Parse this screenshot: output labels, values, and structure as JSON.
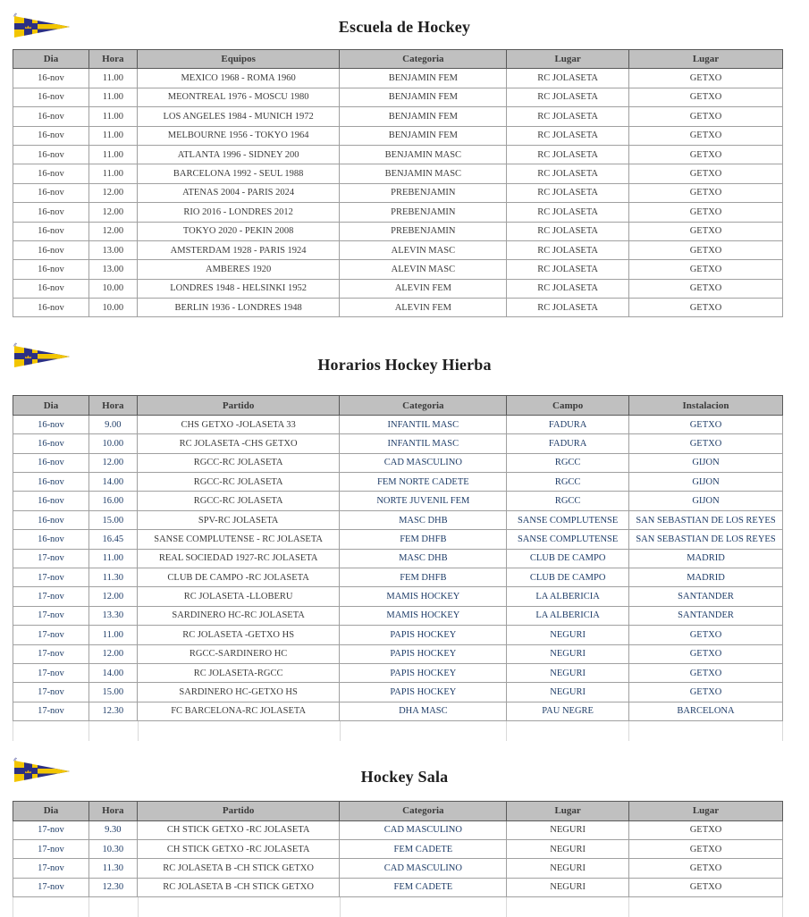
{
  "colors": {
    "accent_blue": "#1f3d68",
    "text_dark": "#3b3b3b",
    "header_bg": "#c0c0c0",
    "border_dark": "#595959",
    "border_light": "#a0a0a0",
    "flag_navy": "#2b2f84",
    "flag_yellow": "#f2c500",
    "crown_gold": "#d4a017"
  },
  "logo_icon": "club-burgee-pennant",
  "sections": [
    {
      "title": "Escuela de Hockey",
      "columns": [
        "Dia",
        "Hora",
        "Equipos",
        "Categoria",
        "Lugar",
        "Lugar"
      ],
      "blue_columns": [],
      "trailing_empty_row": false,
      "rows": [
        [
          "16-nov",
          "11.00",
          "MEXICO 1968 - ROMA 1960",
          "BENJAMIN FEM",
          "RC JOLASETA",
          "GETXO"
        ],
        [
          "16-nov",
          "11.00",
          "MEONTREAL 1976 - MOSCU 1980",
          "BENJAMIN FEM",
          "RC JOLASETA",
          "GETXO"
        ],
        [
          "16-nov",
          "11.00",
          "LOS ANGELES 1984 - MUNICH 1972",
          "BENJAMIN FEM",
          "RC JOLASETA",
          "GETXO"
        ],
        [
          "16-nov",
          "11.00",
          "MELBOURNE 1956 - TOKYO 1964",
          "BENJAMIN FEM",
          "RC JOLASETA",
          "GETXO"
        ],
        [
          "16-nov",
          "11.00",
          "ATLANTA 1996 - SIDNEY 200",
          "BENJAMIN MASC",
          "RC JOLASETA",
          "GETXO"
        ],
        [
          "16-nov",
          "11.00",
          "BARCELONA 1992 - SEUL 1988",
          "BENJAMIN MASC",
          "RC JOLASETA",
          "GETXO"
        ],
        [
          "16-nov",
          "12.00",
          "ATENAS 2004 - PARIS 2024",
          "PREBENJAMIN",
          "RC JOLASETA",
          "GETXO"
        ],
        [
          "16-nov",
          "12.00",
          "RIO 2016 - LONDRES 2012",
          "PREBENJAMIN",
          "RC JOLASETA",
          "GETXO"
        ],
        [
          "16-nov",
          "12.00",
          "TOKYO 2020 - PEKIN 2008",
          "PREBENJAMIN",
          "RC JOLASETA",
          "GETXO"
        ],
        [
          "16-nov",
          "13.00",
          "AMSTERDAM 1928 - PARIS 1924",
          "ALEVIN MASC",
          "RC JOLASETA",
          "GETXO"
        ],
        [
          "16-nov",
          "13.00",
          "AMBERES 1920",
          "ALEVIN MASC",
          "RC JOLASETA",
          "GETXO"
        ],
        [
          "16-nov",
          "10.00",
          "LONDRES 1948 - HELSINKI 1952",
          "ALEVIN FEM",
          "RC JOLASETA",
          "GETXO"
        ],
        [
          "16-nov",
          "10.00",
          "BERLIN 1936 - LONDRES 1948",
          "ALEVIN FEM",
          "RC JOLASETA",
          "GETXO"
        ]
      ]
    },
    {
      "title": "Horarios Hockey Hierba",
      "columns": [
        "Dia",
        "Hora",
        "Partido",
        "Categoria",
        "Campo",
        "Instalacion"
      ],
      "blue_columns": [
        0,
        1,
        3,
        4,
        5
      ],
      "trailing_empty_row": true,
      "rows": [
        [
          "16-nov",
          "9.00",
          "CHS GETXO -JOLASETA 33",
          "INFANTIL MASC",
          "FADURA",
          "GETXO"
        ],
        [
          "16-nov",
          "10.00",
          "RC JOLASETA -CHS GETXO",
          "INFANTIL MASC",
          "FADURA",
          "GETXO"
        ],
        [
          "16-nov",
          "12.00",
          "RGCC-RC JOLASETA",
          "CAD MASCULINO",
          "RGCC",
          "GIJON"
        ],
        [
          "16-nov",
          "14.00",
          "RGCC-RC JOLASETA",
          "FEM NORTE CADETE",
          "RGCC",
          "GIJON"
        ],
        [
          "16-nov",
          "16.00",
          "RGCC-RC JOLASETA",
          "NORTE JUVENIL FEM",
          "RGCC",
          "GIJON"
        ],
        [
          "16-nov",
          "15.00",
          "SPV-RC JOLASETA",
          "MASC DHB",
          "SANSE COMPLUTENSE",
          "SAN SEBASTIAN DE LOS REYES"
        ],
        [
          "16-nov",
          "16.45",
          "SANSE COMPLUTENSE - RC JOLASETA",
          "FEM DHFB",
          "SANSE COMPLUTENSE",
          "SAN SEBASTIAN DE LOS REYES"
        ],
        [
          "17-nov",
          "11.00",
          "REAL SOCIEDAD 1927-RC JOLASETA",
          "MASC DHB",
          "CLUB DE CAMPO",
          "MADRID"
        ],
        [
          "17-nov",
          "11.30",
          "CLUB DE CAMPO -RC JOLASETA",
          "FEM DHFB",
          "CLUB DE CAMPO",
          "MADRID"
        ],
        [
          "17-nov",
          "12.00",
          "RC JOLASETA -LLOBERU",
          "MAMIS HOCKEY",
          "LA ALBERICIA",
          "SANTANDER"
        ],
        [
          "17-nov",
          "13.30",
          "SARDINERO HC-RC JOLASETA",
          "MAMIS HOCKEY",
          "LA ALBERICIA",
          "SANTANDER"
        ],
        [
          "17-nov",
          "11.00",
          "RC JOLASETA -GETXO HS",
          "PAPIS HOCKEY",
          "NEGURI",
          "GETXO"
        ],
        [
          "17-nov",
          "12.00",
          "RGCC-SARDINERO HC",
          "PAPIS HOCKEY",
          "NEGURI",
          "GETXO"
        ],
        [
          "17-nov",
          "14.00",
          "RC JOLASETA-RGCC",
          "PAPIS HOCKEY",
          "NEGURI",
          "GETXO"
        ],
        [
          "17-nov",
          "15.00",
          "SARDINERO HC-GETXO HS",
          "PAPIS HOCKEY",
          "NEGURI",
          "GETXO"
        ],
        [
          "17-nov",
          "12.30",
          "FC BARCELONA-RC JOLASETA",
          "DHA MASC",
          "PAU NEGRE",
          "BARCELONA"
        ]
      ]
    },
    {
      "title": "Hockey Sala",
      "columns": [
        "Dia",
        "Hora",
        "Partido",
        "Categoria",
        "Lugar",
        "Lugar"
      ],
      "blue_columns": [
        0,
        1,
        3
      ],
      "trailing_empty_row": true,
      "rows": [
        [
          "17-nov",
          "9.30",
          "CH STICK GETXO -RC JOLASETA",
          "CAD MASCULINO",
          "NEGURI",
          "GETXO"
        ],
        [
          "17-nov",
          "10.30",
          "CH STICK GETXO -RC JOLASETA",
          "FEM CADETE",
          "NEGURI",
          "GETXO"
        ],
        [
          "17-nov",
          "11.30",
          "RC JOLASETA B -CH STICK GETXO",
          "CAD MASCULINO",
          "NEGURI",
          "GETXO"
        ],
        [
          "17-nov",
          "12.30",
          "RC JOLASETA B -CH STICK GETXO",
          "FEM CADETE",
          "NEGURI",
          "GETXO"
        ]
      ]
    }
  ]
}
